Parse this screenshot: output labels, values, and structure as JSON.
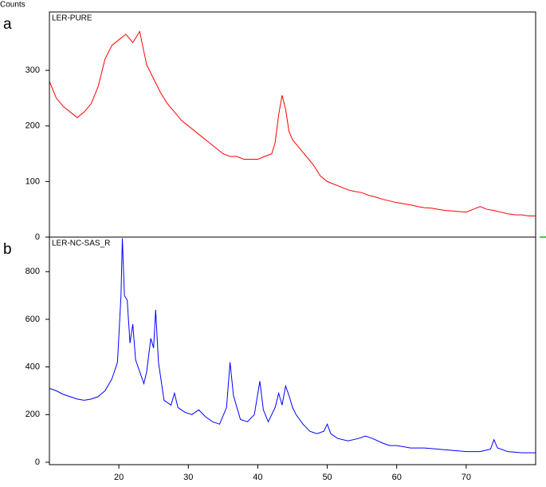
{
  "chart_data": [
    {
      "type": "line",
      "panel_label": "a",
      "title": "LER-PURE",
      "y_label": "Counts",
      "xlim": [
        10,
        80
      ],
      "ylim": [
        0,
        405
      ],
      "yticks": [
        0,
        100,
        200,
        300
      ],
      "series": [
        {
          "color": "#ff0000",
          "x": [
            10,
            11,
            12,
            13,
            14,
            15,
            16,
            17,
            18,
            19,
            20,
            21,
            22,
            23,
            23.5,
            24,
            25,
            26,
            27,
            28,
            29,
            30,
            31,
            32,
            33,
            34,
            35,
            36,
            37,
            38,
            39,
            40,
            41,
            42,
            42.5,
            43,
            43.5,
            44,
            44.5,
            45,
            46,
            47,
            48,
            49,
            50,
            51,
            52,
            53,
            54,
            55,
            56,
            57,
            58,
            59,
            60,
            61,
            62,
            63,
            64,
            65,
            66,
            67,
            68,
            69,
            70,
            71,
            72,
            73,
            74,
            75,
            76,
            77,
            78,
            79,
            80
          ],
          "values": [
            280,
            250,
            235,
            225,
            215,
            225,
            240,
            270,
            320,
            345,
            355,
            365,
            350,
            370,
            340,
            310,
            285,
            260,
            240,
            225,
            210,
            200,
            190,
            180,
            170,
            160,
            150,
            145,
            145,
            140,
            140,
            140,
            145,
            150,
            170,
            220,
            255,
            230,
            190,
            175,
            160,
            145,
            130,
            110,
            100,
            95,
            90,
            85,
            82,
            80,
            75,
            72,
            68,
            65,
            62,
            60,
            58,
            55,
            53,
            52,
            50,
            48,
            47,
            46,
            45,
            50,
            55,
            50,
            48,
            45,
            42,
            40,
            40,
            38,
            38
          ]
        }
      ]
    },
    {
      "type": "line",
      "panel_label": "b",
      "title": "LER-NC-SAS_R",
      "xlim": [
        10,
        80
      ],
      "ylim": [
        -10,
        945
      ],
      "yticks": [
        0,
        200,
        400,
        600,
        800
      ],
      "xticks": [
        20,
        30,
        40,
        50,
        60,
        70
      ],
      "series": [
        {
          "color": "#0000ff",
          "x": [
            10,
            11,
            12,
            13,
            14,
            15,
            16,
            17,
            18,
            19,
            19.8,
            20.3,
            20.5,
            20.8,
            21.2,
            21.6,
            22,
            22.4,
            23,
            23.6,
            24,
            24.6,
            25,
            25.3,
            25.7,
            26.5,
            27.5,
            28,
            28.5,
            29.5,
            30.5,
            31.5,
            32.5,
            33.5,
            34.5,
            35.5,
            36,
            36.5,
            37.5,
            38.5,
            39.5,
            40.3,
            40.8,
            41.5,
            42.5,
            43,
            43.5,
            44,
            44.5,
            45,
            45.5,
            46.5,
            47.5,
            48.5,
            49.5,
            50,
            50.5,
            51.5,
            53,
            54.5,
            55.5,
            56.5,
            58,
            59,
            60,
            62,
            64,
            66,
            68,
            70,
            72,
            73.5,
            74,
            74.5,
            76,
            78,
            80
          ],
          "values": [
            310,
            300,
            285,
            275,
            265,
            260,
            265,
            275,
            300,
            350,
            420,
            700,
            940,
            700,
            680,
            500,
            580,
            430,
            380,
            330,
            380,
            520,
            480,
            640,
            420,
            260,
            240,
            290,
            230,
            210,
            200,
            220,
            190,
            170,
            160,
            230,
            420,
            280,
            180,
            170,
            200,
            340,
            220,
            170,
            230,
            290,
            240,
            320,
            280,
            230,
            200,
            160,
            130,
            120,
            130,
            160,
            120,
            100,
            90,
            100,
            110,
            100,
            80,
            70,
            70,
            60,
            60,
            55,
            50,
            45,
            45,
            55,
            95,
            60,
            45,
            40,
            40
          ]
        }
      ]
    }
  ]
}
